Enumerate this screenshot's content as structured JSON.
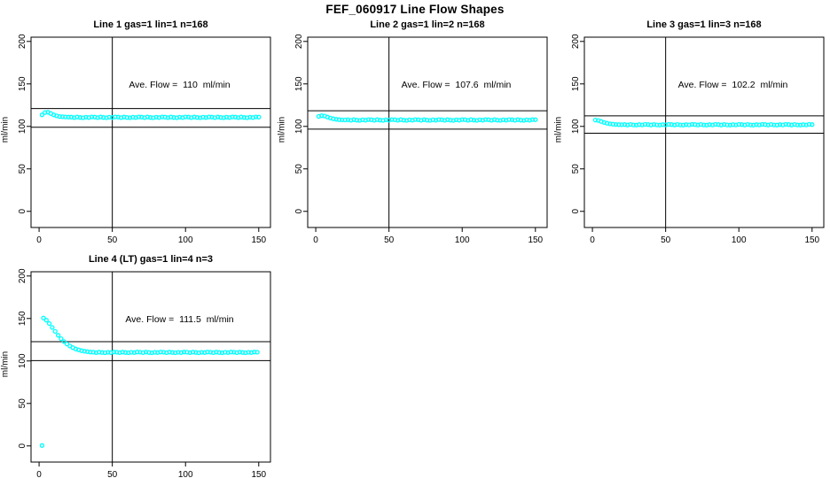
{
  "page_title": "FEF_060917  Line Flow Shapes",
  "accent_color": "#00FFFF",
  "chart_data": [
    {
      "type": "scatter",
      "title": "Line 1 gas=1 lin=1 n=168",
      "annotation": "Ave. Flow =  110  ml/min",
      "ave_flow": 110,
      "xlabel": "",
      "ylabel": "ml/min",
      "xlim": [
        -5.5,
        158
      ],
      "ylim": [
        -19,
        205
      ],
      "xticks": [
        0,
        50,
        100,
        150
      ],
      "yticks": [
        0,
        50,
        100,
        150,
        200
      ],
      "vlines": [
        50
      ],
      "hlines": [
        121,
        99
      ],
      "marker": "open-circle",
      "marker_color": "#00FFFF",
      "x": [
        2,
        4,
        6,
        8,
        10,
        12,
        14,
        16,
        18,
        20,
        22,
        24,
        26,
        28,
        30,
        32,
        34,
        36,
        38,
        40,
        42,
        44,
        46,
        48,
        50,
        52,
        54,
        56,
        58,
        60,
        62,
        64,
        66,
        68,
        70,
        72,
        74,
        76,
        78,
        80,
        82,
        84,
        86,
        88,
        90,
        92,
        94,
        96,
        98,
        100,
        102,
        104,
        106,
        108,
        110,
        112,
        114,
        116,
        118,
        120,
        122,
        124,
        126,
        128,
        130,
        132,
        134,
        136,
        138,
        140,
        142,
        144,
        146,
        148,
        150
      ],
      "y": [
        113.5,
        116.3,
        116.6,
        115.2,
        113.6,
        112.4,
        111.7,
        111.3,
        111.1,
        110.9,
        110.9,
        110.3,
        111.0,
        110.5,
        110.2,
        110.8,
        110.4,
        111.1,
        110.9,
        110.3,
        111.0,
        110.5,
        110.2,
        110.8,
        110.4,
        111.1,
        110.9,
        110.3,
        111.0,
        110.5,
        110.2,
        110.8,
        110.4,
        111.1,
        110.9,
        110.3,
        111.0,
        110.5,
        110.2,
        110.8,
        110.4,
        111.1,
        110.9,
        110.3,
        111.0,
        110.5,
        110.2,
        110.8,
        110.4,
        111.1,
        110.9,
        110.3,
        111.0,
        110.5,
        110.2,
        110.8,
        110.4,
        111.1,
        110.9,
        110.3,
        111.0,
        110.5,
        110.2,
        110.8,
        110.4,
        111.1,
        110.9,
        110.3,
        111.0,
        110.5,
        110.2,
        110.8,
        110.4,
        111.1,
        110.9
      ]
    },
    {
      "type": "scatter",
      "title": "Line 2 gas=1 lin=2 n=168",
      "annotation": "Ave. Flow =  107.6  ml/min",
      "ave_flow": 107.6,
      "xlabel": "",
      "ylabel": "ml/min",
      "xlim": [
        -5.5,
        158
      ],
      "ylim": [
        -19,
        205
      ],
      "xticks": [
        0,
        50,
        100,
        150
      ],
      "yticks": [
        0,
        50,
        100,
        150,
        200
      ],
      "vlines": [
        50
      ],
      "hlines": [
        118.4,
        96.8
      ],
      "marker": "open-circle",
      "marker_color": "#00FFFF",
      "x": [
        2,
        4,
        6,
        8,
        10,
        12,
        14,
        16,
        18,
        20,
        22,
        24,
        26,
        28,
        30,
        32,
        34,
        36,
        38,
        40,
        42,
        44,
        46,
        48,
        50,
        52,
        54,
        56,
        58,
        60,
        62,
        64,
        66,
        68,
        70,
        72,
        74,
        76,
        78,
        80,
        82,
        84,
        86,
        88,
        90,
        92,
        94,
        96,
        98,
        100,
        102,
        104,
        106,
        108,
        110,
        112,
        114,
        116,
        118,
        120,
        122,
        124,
        126,
        128,
        130,
        132,
        134,
        136,
        138,
        140,
        142,
        144,
        146,
        148,
        150
      ],
      "y": [
        111.8,
        112.6,
        112.2,
        111.0,
        109.8,
        108.9,
        108.3,
        107.9,
        107.7,
        107.6,
        107.8,
        107.2,
        107.9,
        107.4,
        107.1,
        107.7,
        107.3,
        108.0,
        107.8,
        107.2,
        107.9,
        107.4,
        107.1,
        107.7,
        107.3,
        108.0,
        107.8,
        107.2,
        107.9,
        107.4,
        107.1,
        107.7,
        107.3,
        108.0,
        107.8,
        107.2,
        107.9,
        107.4,
        107.1,
        107.7,
        107.3,
        108.0,
        107.8,
        107.2,
        107.9,
        107.4,
        107.1,
        107.7,
        107.3,
        108.0,
        107.8,
        107.2,
        107.9,
        107.4,
        107.1,
        107.7,
        107.3,
        108.0,
        107.8,
        107.2,
        107.9,
        107.4,
        107.1,
        107.7,
        107.3,
        108.0,
        107.8,
        107.2,
        107.9,
        107.4,
        107.1,
        107.7,
        107.3,
        108.0,
        107.8
      ]
    },
    {
      "type": "scatter",
      "title": "Line 3 gas=1 lin=3 n=168",
      "annotation": "Ave. Flow =  102.2  ml/min",
      "ave_flow": 102.2,
      "xlabel": "",
      "ylabel": "ml/min",
      "xlim": [
        -5.5,
        158
      ],
      "ylim": [
        -19,
        205
      ],
      "xticks": [
        0,
        50,
        100,
        150
      ],
      "yticks": [
        0,
        50,
        100,
        150,
        200
      ],
      "vlines": [
        50
      ],
      "hlines": [
        112.4,
        92.0
      ],
      "marker": "open-circle",
      "marker_color": "#00FFFF",
      "x": [
        2,
        4,
        6,
        8,
        10,
        12,
        14,
        16,
        18,
        20,
        22,
        24,
        26,
        28,
        30,
        32,
        34,
        36,
        38,
        40,
        42,
        44,
        46,
        48,
        50,
        52,
        54,
        56,
        58,
        60,
        62,
        64,
        66,
        68,
        70,
        72,
        74,
        76,
        78,
        80,
        82,
        84,
        86,
        88,
        90,
        92,
        94,
        96,
        98,
        100,
        102,
        104,
        106,
        108,
        110,
        112,
        114,
        116,
        118,
        120,
        122,
        124,
        126,
        128,
        130,
        132,
        134,
        136,
        138,
        140,
        142,
        144,
        146,
        148,
        150
      ],
      "y": [
        107.5,
        107.0,
        105.8,
        104.6,
        103.7,
        103.0,
        102.6,
        102.3,
        102.1,
        102.0,
        102.2,
        101.6,
        102.3,
        101.8,
        101.5,
        102.1,
        101.7,
        102.4,
        102.2,
        101.6,
        102.3,
        101.8,
        101.5,
        102.1,
        101.7,
        102.4,
        102.2,
        101.6,
        102.3,
        101.8,
        101.5,
        102.1,
        101.7,
        102.4,
        102.2,
        101.6,
        102.3,
        101.8,
        101.5,
        102.1,
        101.7,
        102.4,
        102.2,
        101.6,
        102.3,
        101.8,
        101.5,
        102.1,
        101.7,
        102.4,
        102.2,
        101.6,
        102.3,
        101.8,
        101.5,
        102.1,
        101.7,
        102.4,
        102.2,
        101.6,
        102.3,
        101.8,
        101.5,
        102.1,
        101.7,
        102.4,
        102.2,
        101.6,
        102.3,
        101.8,
        101.5,
        102.1,
        101.7,
        102.4,
        102.2
      ]
    },
    {
      "type": "scatter",
      "title": "Line 4 (LT) gas=1 lin=4 n=3",
      "annotation": "Ave. Flow =  111.5  ml/min",
      "ave_flow": 111.5,
      "xlabel": "",
      "ylabel": "ml/min",
      "xlim": [
        -5.5,
        158
      ],
      "ylim": [
        -19,
        205
      ],
      "xticks": [
        0,
        50,
        100,
        150
      ],
      "yticks": [
        0,
        50,
        100,
        150,
        200
      ],
      "vlines": [
        50
      ],
      "hlines": [
        122.7,
        100.4
      ],
      "marker": "open-circle",
      "marker_color": "#00FFFF",
      "x": [
        2,
        3,
        5,
        7,
        9,
        11,
        13,
        15,
        17,
        19,
        21,
        23,
        25,
        27,
        29,
        31,
        33,
        35,
        37,
        39,
        41,
        43,
        45,
        47,
        49,
        51,
        53,
        55,
        57,
        59,
        61,
        63,
        65,
        67,
        69,
        71,
        73,
        75,
        77,
        79,
        81,
        83,
        85,
        87,
        89,
        91,
        93,
        95,
        97,
        99,
        101,
        103,
        105,
        107,
        109,
        111,
        113,
        115,
        117,
        119,
        121,
        123,
        125,
        127,
        129,
        131,
        133,
        135,
        137,
        139,
        141,
        143,
        145,
        147,
        149
      ],
      "y": [
        0.5,
        150.5,
        148.0,
        144.0,
        139.5,
        134.8,
        130.2,
        126.2,
        122.8,
        120.0,
        117.6,
        115.7,
        114.2,
        113.0,
        112.1,
        111.4,
        110.9,
        110.5,
        110.3,
        109.8,
        110.4,
        110.0,
        109.7,
        110.2,
        109.9,
        110.5,
        110.3,
        109.8,
        110.4,
        110.0,
        109.7,
        110.2,
        109.9,
        110.5,
        110.3,
        109.8,
        110.4,
        110.0,
        109.7,
        110.2,
        109.9,
        110.5,
        110.3,
        109.8,
        110.4,
        110.0,
        109.7,
        110.2,
        109.9,
        110.5,
        110.3,
        109.8,
        110.4,
        110.0,
        109.7,
        110.2,
        109.9,
        110.5,
        110.3,
        109.8,
        110.4,
        110.0,
        109.7,
        110.2,
        109.9,
        110.5,
        110.3,
        109.8,
        110.4,
        110.0,
        109.7,
        110.2,
        109.9,
        110.5,
        110.3
      ]
    }
  ]
}
